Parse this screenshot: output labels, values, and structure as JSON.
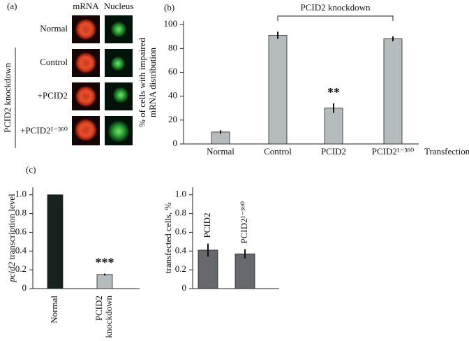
{
  "panel_a": {
    "label": "(a)",
    "columns": [
      "mRNA",
      "Nucleus"
    ],
    "rows": [
      "Normal",
      "Control",
      "+PCID2",
      "+PCID2¹⁻³⁶⁰"
    ],
    "group_label": "PCID2 knockdown"
  },
  "chart_data": [
    {
      "type": "bar",
      "panel_label": "(b)",
      "ylabel": "% of cells with impaired mRNA distribution",
      "xlabel": "Transfection",
      "bracket_label": "PCID2 knockdown",
      "categories": [
        "Normal",
        "Control",
        "PCID2",
        "PCID2¹⁻³⁶⁰"
      ],
      "values": [
        10,
        91,
        30,
        88
      ],
      "errors": [
        1.5,
        3,
        4,
        2
      ],
      "colors": [
        "#b4bcbe",
        "#b4bcbe",
        "#b4bcbe",
        "#b4bcbe"
      ],
      "annotations": [
        "**"
      ],
      "ylim": [
        0,
        103
      ],
      "yticks": [
        0,
        20,
        40,
        60,
        80,
        100
      ]
    },
    {
      "type": "bar",
      "panel_label": "(c)",
      "ylabel_gene": "pcid2",
      "ylabel": "transcription level",
      "categories": [
        "Normal",
        "PCID2 knockdown"
      ],
      "values": [
        1.0,
        0.15
      ],
      "errors": [
        0,
        0.01
      ],
      "colors": [
        "#17211e",
        "#b4bcbe"
      ],
      "annotations": [
        "***"
      ],
      "ylim": [
        0,
        1.08
      ],
      "yticks": [
        0,
        0.2,
        0.4,
        0.6,
        0.8,
        {
          "value": 1,
          "label": "1.0"
        }
      ]
    },
    {
      "type": "bar",
      "ylabel": "transfected cells, %",
      "categories": [
        "PCID2",
        "PCID2¹⁻³⁶⁰"
      ],
      "values": [
        0.41,
        0.37
      ],
      "errors": [
        0.07,
        0.05
      ],
      "colors": [
        "#65686c",
        "#65686c"
      ],
      "ylim": [
        0,
        1.08
      ],
      "yticks": [
        0,
        0.2,
        0.4,
        0.6,
        0.8,
        {
          "value": 1,
          "label": "1.0"
        }
      ]
    }
  ]
}
